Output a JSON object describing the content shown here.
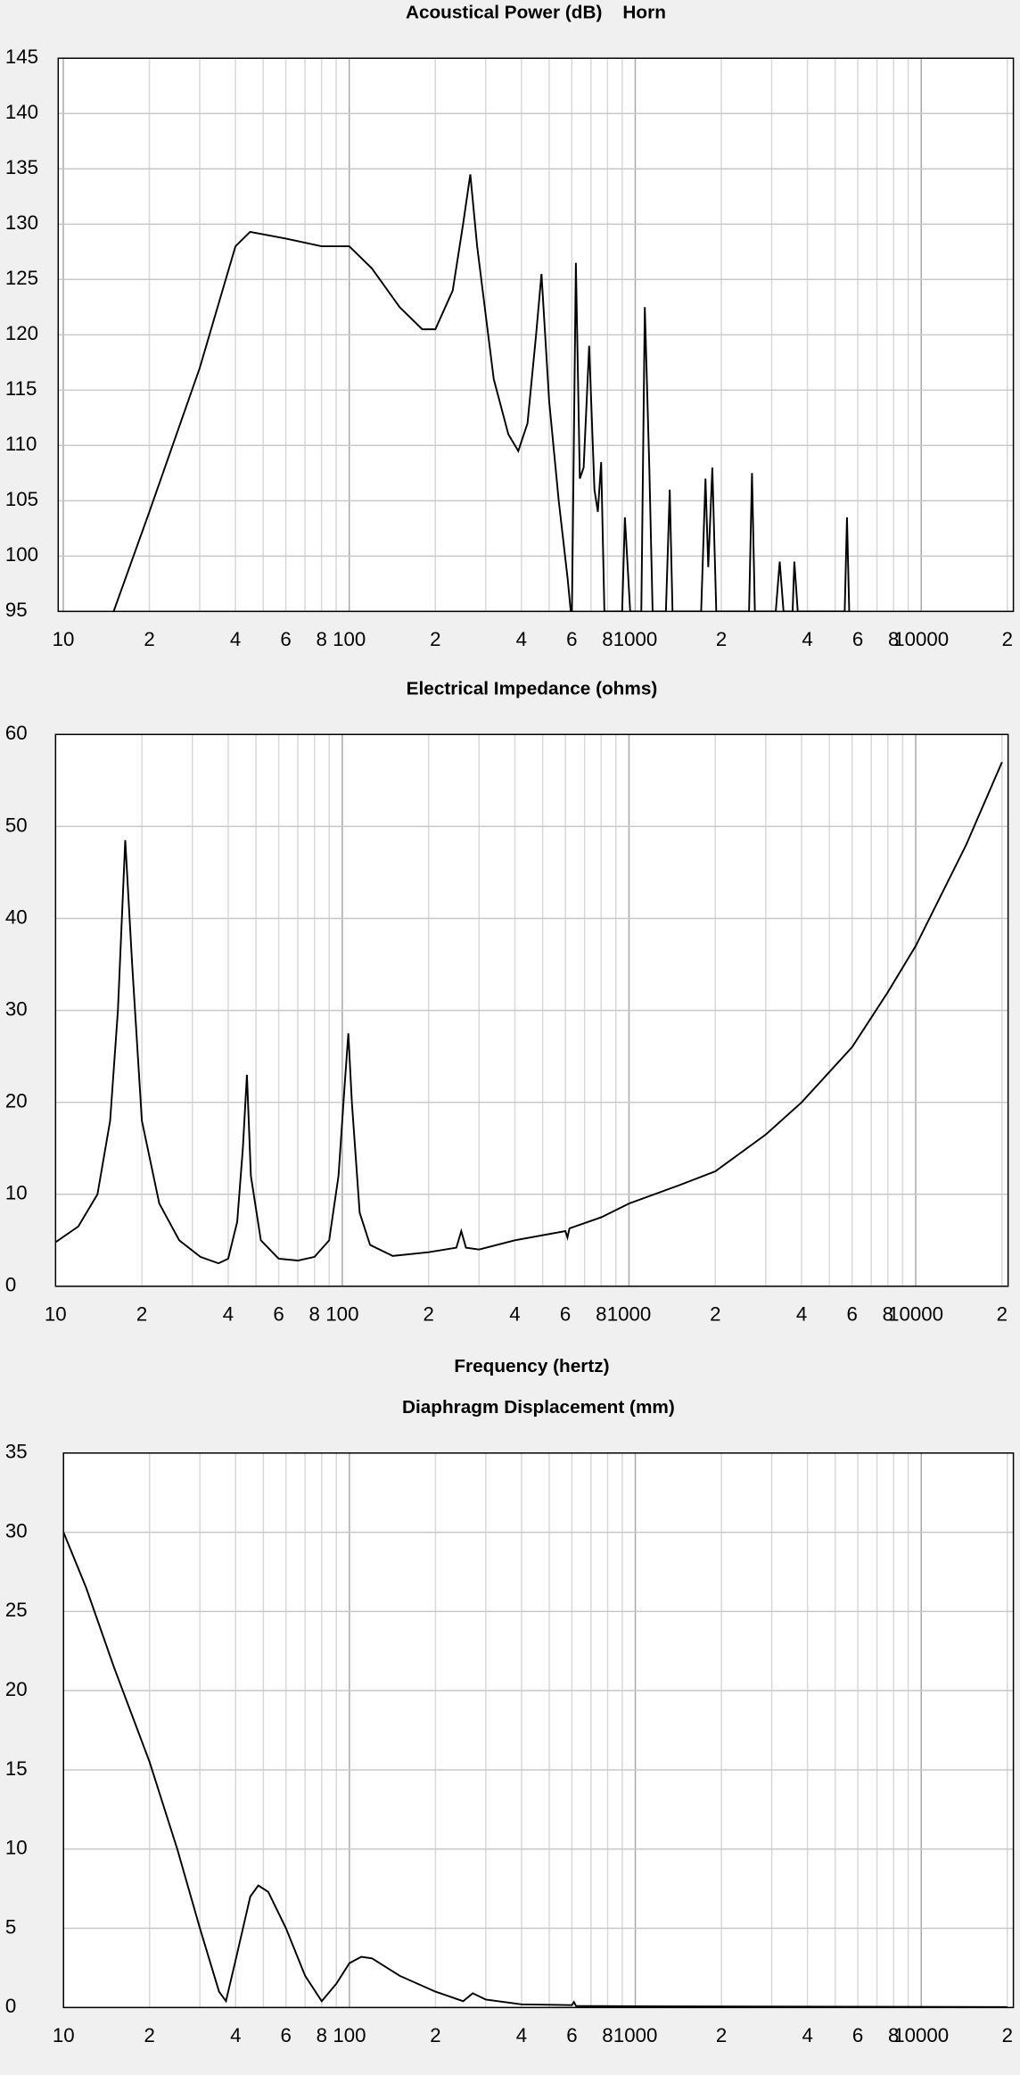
{
  "chart_data": [
    {
      "type": "line",
      "title": "Acoustical Power (dB)    Horn",
      "log_x": true,
      "grid": true,
      "color": "#000000",
      "xlim": [
        9.6,
        21000
      ],
      "ylim": [
        95,
        145
      ],
      "yticks": [
        95,
        100,
        105,
        110,
        115,
        120,
        125,
        130,
        135,
        140,
        145
      ],
      "xticks": [
        10,
        {
          "value": 20,
          "label": "2"
        },
        {
          "value": 40,
          "label": "4"
        },
        {
          "value": 60,
          "label": "6"
        },
        {
          "value": 80,
          "label": "8"
        },
        100,
        {
          "value": 200,
          "label": "2"
        },
        {
          "value": 400,
          "label": "4"
        },
        {
          "value": 600,
          "label": "6"
        },
        {
          "value": 800,
          "label": "8"
        },
        1000,
        {
          "value": 2000,
          "label": "2"
        },
        {
          "value": 4000,
          "label": "4"
        },
        {
          "value": 6000,
          "label": "6"
        },
        {
          "value": 8000,
          "label": "8"
        },
        10000,
        {
          "value": 20000,
          "label": "2"
        }
      ],
      "xgrid": [
        10,
        20,
        30,
        40,
        50,
        60,
        70,
        80,
        90,
        100,
        200,
        300,
        400,
        500,
        600,
        700,
        800,
        900,
        1000,
        2000,
        3000,
        4000,
        5000,
        6000,
        7000,
        8000,
        9000,
        10000,
        20000
      ],
      "x": [
        15,
        20,
        30,
        40,
        45,
        60,
        80,
        100,
        120,
        150,
        180,
        200,
        230,
        250,
        265,
        280,
        320,
        360,
        390,
        420,
        450,
        470,
        500,
        540,
        580,
        600,
        620,
        640,
        660,
        690,
        720,
        740,
        760,
        780,
        900,
        920,
        960,
        1050,
        1080,
        1120,
        1150,
        1280,
        1320,
        1350,
        1700,
        1760,
        1800,
        1860,
        1920,
        2500,
        2560,
        2620,
        3100,
        3200,
        3300,
        3550,
        3600,
        3700,
        5400,
        5500,
        5600
      ],
      "values": [
        95,
        104,
        117,
        128,
        129.3,
        128.7,
        128,
        128,
        126,
        122.5,
        120.5,
        120.5,
        124,
        130,
        134.5,
        128,
        116,
        111,
        109.5,
        112,
        120,
        125.5,
        114,
        105,
        98,
        94,
        126.5,
        107,
        108,
        119,
        106,
        104,
        108.5,
        95,
        95,
        103.5,
        95,
        95,
        122.5,
        108,
        95,
        95,
        106,
        95,
        95,
        107,
        99,
        108,
        95,
        95,
        107.5,
        95,
        95,
        99.5,
        95,
        95,
        99.5,
        95,
        95,
        103.5,
        95
      ]
    },
    {
      "type": "line",
      "title": "Electrical Impedance (ohms)",
      "xlabel": "Frequency (hertz)",
      "log_x": true,
      "grid": true,
      "color": "#000000",
      "xlim": [
        10,
        21000
      ],
      "ylim": [
        0,
        60
      ],
      "yticks": [
        0,
        10,
        20,
        30,
        40,
        50,
        60
      ],
      "xticks": [
        10,
        {
          "value": 20,
          "label": "2"
        },
        {
          "value": 40,
          "label": "4"
        },
        {
          "value": 60,
          "label": "6"
        },
        {
          "value": 80,
          "label": "8"
        },
        100,
        {
          "value": 200,
          "label": "2"
        },
        {
          "value": 400,
          "label": "4"
        },
        {
          "value": 600,
          "label": "6"
        },
        {
          "value": 800,
          "label": "8"
        },
        1000,
        {
          "value": 2000,
          "label": "2"
        },
        {
          "value": 4000,
          "label": "4"
        },
        {
          "value": 6000,
          "label": "6"
        },
        {
          "value": 8000,
          "label": "8"
        },
        10000,
        {
          "value": 20000,
          "label": "2"
        }
      ],
      "xgrid": [
        10,
        20,
        30,
        40,
        50,
        60,
        70,
        80,
        90,
        100,
        200,
        300,
        400,
        500,
        600,
        700,
        800,
        900,
        1000,
        2000,
        3000,
        4000,
        5000,
        6000,
        7000,
        8000,
        9000,
        10000,
        20000
      ],
      "x": [
        10,
        12,
        14,
        15.5,
        16.5,
        17.5,
        18.5,
        20,
        23,
        27,
        32,
        37,
        40,
        43,
        45,
        46.5,
        48,
        52,
        60,
        70,
        80,
        90,
        97,
        102,
        105,
        108,
        115,
        125,
        150,
        200,
        250,
        260,
        270,
        300,
        400,
        600,
        610,
        620,
        800,
        1000,
        1500,
        2000,
        3000,
        4000,
        6000,
        8000,
        10000,
        15000,
        20000
      ],
      "values": [
        4.8,
        6.5,
        10,
        18,
        30,
        48.5,
        35,
        18,
        9,
        5,
        3.2,
        2.5,
        3,
        7,
        15,
        23,
        12,
        5,
        3,
        2.8,
        3.2,
        5,
        12,
        22,
        27.5,
        20,
        8,
        4.5,
        3.3,
        3.7,
        4.2,
        6,
        4.2,
        4,
        5,
        6,
        5.3,
        6.3,
        7.5,
        9,
        11,
        12.5,
        16.5,
        20,
        26,
        32,
        37,
        48,
        57
      ]
    },
    {
      "type": "line",
      "title": "Diaphragm Displacement (mm)",
      "log_x": true,
      "grid": true,
      "color": "#000000",
      "xlim": [
        10,
        21000
      ],
      "ylim": [
        0,
        35
      ],
      "yticks": [
        0,
        5,
        10,
        15,
        20,
        25,
        30,
        35
      ],
      "xticks": [
        10,
        {
          "value": 20,
          "label": "2"
        },
        {
          "value": 40,
          "label": "4"
        },
        {
          "value": 60,
          "label": "6"
        },
        {
          "value": 80,
          "label": "8"
        },
        100,
        {
          "value": 200,
          "label": "2"
        },
        {
          "value": 400,
          "label": "4"
        },
        {
          "value": 600,
          "label": "6"
        },
        {
          "value": 800,
          "label": "8"
        },
        1000,
        {
          "value": 2000,
          "label": "2"
        },
        {
          "value": 4000,
          "label": "4"
        },
        {
          "value": 6000,
          "label": "6"
        },
        {
          "value": 8000,
          "label": "8"
        },
        10000,
        {
          "value": 20000,
          "label": "2"
        }
      ],
      "xgrid": [
        10,
        20,
        30,
        40,
        50,
        60,
        70,
        80,
        90,
        100,
        200,
        300,
        400,
        500,
        600,
        700,
        800,
        900,
        1000,
        2000,
        3000,
        4000,
        5000,
        6000,
        7000,
        8000,
        9000,
        10000,
        20000
      ],
      "x": [
        10,
        12,
        15,
        20,
        25,
        30,
        35,
        37,
        40,
        45,
        48,
        52,
        60,
        70,
        80,
        90,
        100,
        110,
        120,
        150,
        200,
        250,
        270,
        300,
        400,
        600,
        610,
        620,
        1000,
        20000
      ],
      "values": [
        30,
        26.5,
        21.5,
        15.5,
        10,
        5,
        1,
        0.4,
        3,
        7,
        7.7,
        7.3,
        5,
        2,
        0.4,
        1.5,
        2.8,
        3.2,
        3.1,
        2,
        1,
        0.4,
        0.9,
        0.5,
        0.2,
        0.15,
        0.35,
        0.1,
        0.08,
        0.03
      ]
    }
  ]
}
